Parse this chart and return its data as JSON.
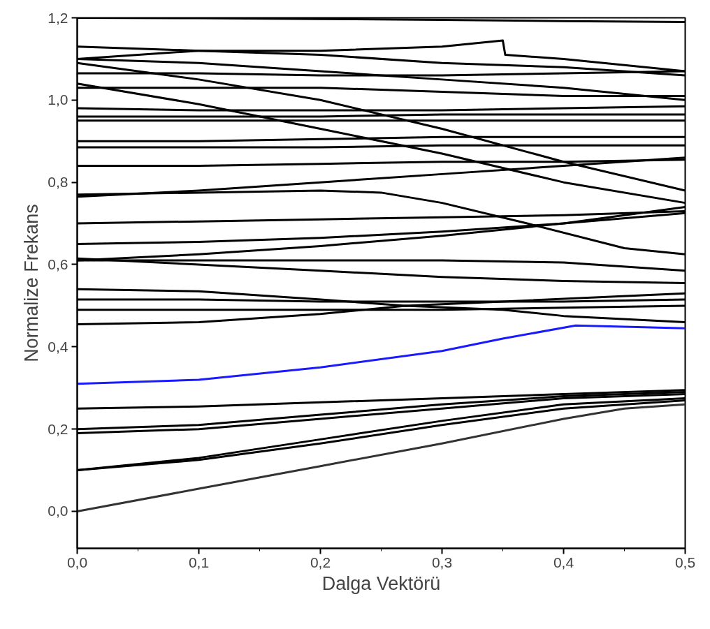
{
  "chart_data": {
    "type": "line",
    "xlabel": "Dalga Vektörü",
    "ylabel": "Normalize Frekans",
    "x": [
      0,
      0.1,
      0.2,
      0.3,
      0.4,
      0.5
    ],
    "xlim": [
      0,
      0.5
    ],
    "ylim": [
      -0.09,
      1.2
    ],
    "xticks": [
      {
        "value": 0,
        "label": "0,0"
      },
      {
        "value": 0.1,
        "label": "0,1"
      },
      {
        "value": 0.2,
        "label": "0,2"
      },
      {
        "value": 0.3,
        "label": "0,3"
      },
      {
        "value": 0.4,
        "label": "0,4"
      },
      {
        "value": 0.5,
        "label": "0,5"
      }
    ],
    "yticks": [
      {
        "value": 0,
        "label": "0,0"
      },
      {
        "value": 0.2,
        "label": "0,2"
      },
      {
        "value": 0.4,
        "label": "0,4"
      },
      {
        "value": 0.6,
        "label": "0,6"
      },
      {
        "value": 0.8,
        "label": "0,8"
      },
      {
        "value": 1.0,
        "label": "1,0"
      },
      {
        "value": 1.2,
        "label": "1,2"
      }
    ],
    "grid": false,
    "marker": "none",
    "line_style": "solid",
    "series": [
      {
        "color": "#333333",
        "x": [
          0,
          0.1,
          0.2,
          0.3,
          0.4,
          0.45,
          0.5
        ],
        "values": [
          0,
          0.055,
          0.11,
          0.165,
          0.225,
          0.25,
          0.26
        ]
      },
      {
        "color": "#000000",
        "values": [
          0.1,
          0.125,
          0.165,
          0.21,
          0.25,
          0.27
        ]
      },
      {
        "color": "#000000",
        "values": [
          0.1,
          0.13,
          0.175,
          0.22,
          0.26,
          0.275
        ]
      },
      {
        "color": "#000000",
        "values": [
          0.19,
          0.2,
          0.225,
          0.25,
          0.275,
          0.285
        ]
      },
      {
        "color": "#000000",
        "values": [
          0.2,
          0.21,
          0.235,
          0.26,
          0.28,
          0.29
        ]
      },
      {
        "color": "#000000",
        "values": [
          0.25,
          0.255,
          0.265,
          0.275,
          0.285,
          0.295
        ]
      },
      {
        "color": "#1a1aff",
        "x": [
          0,
          0.1,
          0.2,
          0.3,
          0.35,
          0.41,
          0.5
        ],
        "values": [
          0.31,
          0.32,
          0.35,
          0.39,
          0.42,
          0.452,
          0.445
        ]
      },
      {
        "color": "#000000",
        "x": [
          0,
          0.1,
          0.2,
          0.27,
          0.35,
          0.4,
          0.5
        ],
        "values": [
          0.455,
          0.46,
          0.48,
          0.5,
          0.49,
          0.475,
          0.46
        ]
      },
      {
        "color": "#000000",
        "x": [
          0,
          0.1,
          0.2,
          0.27,
          0.35,
          0.5
        ],
        "values": [
          0.54,
          0.535,
          0.515,
          0.5,
          0.51,
          0.53
        ]
      },
      {
        "color": "#000000",
        "values": [
          0.49,
          0.49,
          0.49,
          0.49,
          0.495,
          0.5
        ]
      },
      {
        "color": "#000000",
        "values": [
          0.515,
          0.515,
          0.51,
          0.51,
          0.51,
          0.515
        ]
      },
      {
        "color": "#000000",
        "values": [
          0.615,
          0.6,
          0.585,
          0.57,
          0.56,
          0.555
        ]
      },
      {
        "color": "#000000",
        "values": [
          0.61,
          0.61,
          0.61,
          0.61,
          0.605,
          0.585
        ]
      },
      {
        "color": "#000000",
        "values": [
          0.61,
          0.625,
          0.645,
          0.67,
          0.7,
          0.74
        ]
      },
      {
        "color": "#000000",
        "values": [
          0.65,
          0.655,
          0.665,
          0.68,
          0.7,
          0.725
        ]
      },
      {
        "color": "#000000",
        "values": [
          0.7,
          0.705,
          0.71,
          0.715,
          0.72,
          0.73
        ]
      },
      {
        "color": "#000000",
        "x": [
          0,
          0.1,
          0.2,
          0.25,
          0.3,
          0.37,
          0.45,
          0.5
        ],
        "values": [
          0.77,
          0.775,
          0.78,
          0.775,
          0.75,
          0.7,
          0.64,
          0.625
        ]
      },
      {
        "color": "#000000",
        "values": [
          0.765,
          0.78,
          0.8,
          0.82,
          0.84,
          0.86
        ]
      },
      {
        "color": "#000000",
        "values": [
          0.84,
          0.84,
          0.845,
          0.85,
          0.85,
          0.855
        ]
      },
      {
        "color": "#000000",
        "values": [
          0.885,
          0.885,
          0.885,
          0.89,
          0.89,
          0.89
        ]
      },
      {
        "color": "#000000",
        "values": [
          0.9,
          0.9,
          0.905,
          0.91,
          0.91,
          0.91
        ]
      },
      {
        "color": "#000000",
        "values": [
          0.95,
          0.95,
          0.95,
          0.95,
          0.95,
          0.95
        ]
      },
      {
        "color": "#000000",
        "values": [
          0.96,
          0.96,
          0.96,
          0.965,
          0.965,
          0.965
        ]
      },
      {
        "color": "#000000",
        "values": [
          0.98,
          0.975,
          0.975,
          0.975,
          0.98,
          0.985
        ]
      },
      {
        "color": "#000000",
        "values": [
          1.04,
          0.99,
          0.93,
          0.87,
          0.8,
          0.75
        ]
      },
      {
        "color": "#000000",
        "values": [
          1.09,
          1.05,
          1.0,
          0.93,
          0.85,
          0.78
        ]
      },
      {
        "color": "#000000",
        "values": [
          1.1,
          1.09,
          1.07,
          1.05,
          1.03,
          1.0
        ]
      },
      {
        "color": "#000000",
        "values": [
          1.13,
          1.12,
          1.11,
          1.09,
          1.08,
          1.06
        ]
      },
      {
        "color": "#000000",
        "x": [
          0,
          0.1,
          0.2,
          0.3,
          0.35,
          0.352,
          0.4,
          0.5
        ],
        "values": [
          1.1,
          1.12,
          1.12,
          1.13,
          1.145,
          1.11,
          1.1,
          1.07
        ]
      },
      {
        "color": "#000000",
        "values": [
          1.065,
          1.065,
          1.06,
          1.06,
          1.065,
          1.07
        ]
      },
      {
        "color": "#000000",
        "values": [
          1.03,
          1.03,
          1.03,
          1.02,
          1.01,
          1.01
        ]
      },
      {
        "color": "#000000",
        "values": [
          1.2,
          1.199,
          1.197,
          1.195,
          1.192,
          1.19
        ]
      }
    ]
  }
}
